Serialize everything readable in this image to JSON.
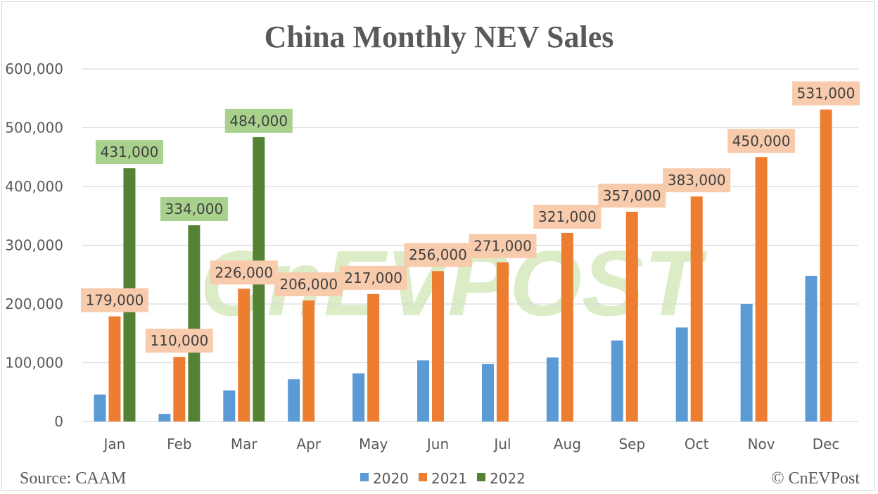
{
  "chart_data": {
    "type": "bar",
    "title": "China Monthly NEV Sales",
    "categories": [
      "Jan",
      "Feb",
      "Mar",
      "Apr",
      "May",
      "Jun",
      "Jul",
      "Aug",
      "Sep",
      "Oct",
      "Nov",
      "Dec"
    ],
    "ylim": [
      0,
      600000
    ],
    "yticks": [
      "0",
      "100,000",
      "200,000",
      "300,000",
      "400,000",
      "500,000",
      "600,000"
    ],
    "grid": true,
    "legend_position": "bottom",
    "series": [
      {
        "name": "2020",
        "color": "#5b9bd5",
        "values": [
          46000,
          13000,
          53000,
          72000,
          82000,
          104000,
          98000,
          109000,
          138000,
          160000,
          200000,
          248000
        ]
      },
      {
        "name": "2021",
        "color": "#ed7d31",
        "label_bg": "#f8cbad",
        "values": [
          179000,
          110000,
          226000,
          206000,
          217000,
          256000,
          271000,
          321000,
          357000,
          383000,
          450000,
          531000
        ],
        "labels": [
          "179,000",
          "110,000",
          "226,000",
          "206,000",
          "217,000",
          "256,000",
          "271,000",
          "321,000",
          "357,000",
          "383,000",
          "450,000",
          "531,000"
        ]
      },
      {
        "name": "2022",
        "color": "#548235",
        "label_bg": "#a9d18e",
        "values": [
          431000,
          334000,
          484000,
          null,
          null,
          null,
          null,
          null,
          null,
          null,
          null,
          null
        ],
        "labels": [
          "431,000",
          "334,000",
          "484,000"
        ]
      }
    ],
    "source": "Source: CAAM",
    "copyright": "© CnEVPost"
  },
  "watermark": "CnEVPOST",
  "colors": {
    "grid": "#d9d9d9",
    "text": "#595959"
  }
}
